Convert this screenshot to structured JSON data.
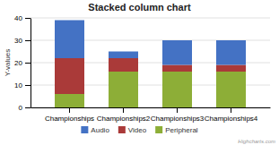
{
  "chart_data": {
    "type": "bar",
    "stacked": true,
    "title": "Stacked column chart",
    "ylabel": "Y-values",
    "categories": [
      "Championships",
      "Championships2",
      "Championships3",
      "Championships4"
    ],
    "series": [
      {
        "name": "Audio",
        "color": "#4472C4",
        "values": [
          17,
          3,
          11,
          11
        ]
      },
      {
        "name": "Video",
        "color": "#AA3A39",
        "values": [
          16,
          6,
          3,
          3
        ]
      },
      {
        "name": "Peripheral",
        "color": "#8DAE37",
        "values": [
          6,
          16,
          16,
          16
        ]
      }
    ],
    "ylim": [
      0,
      40
    ],
    "yticks": [
      0,
      10,
      20,
      30,
      40
    ],
    "grid": true,
    "legend": "bottom",
    "annotations": [
      "Highcharts.com"
    ]
  }
}
